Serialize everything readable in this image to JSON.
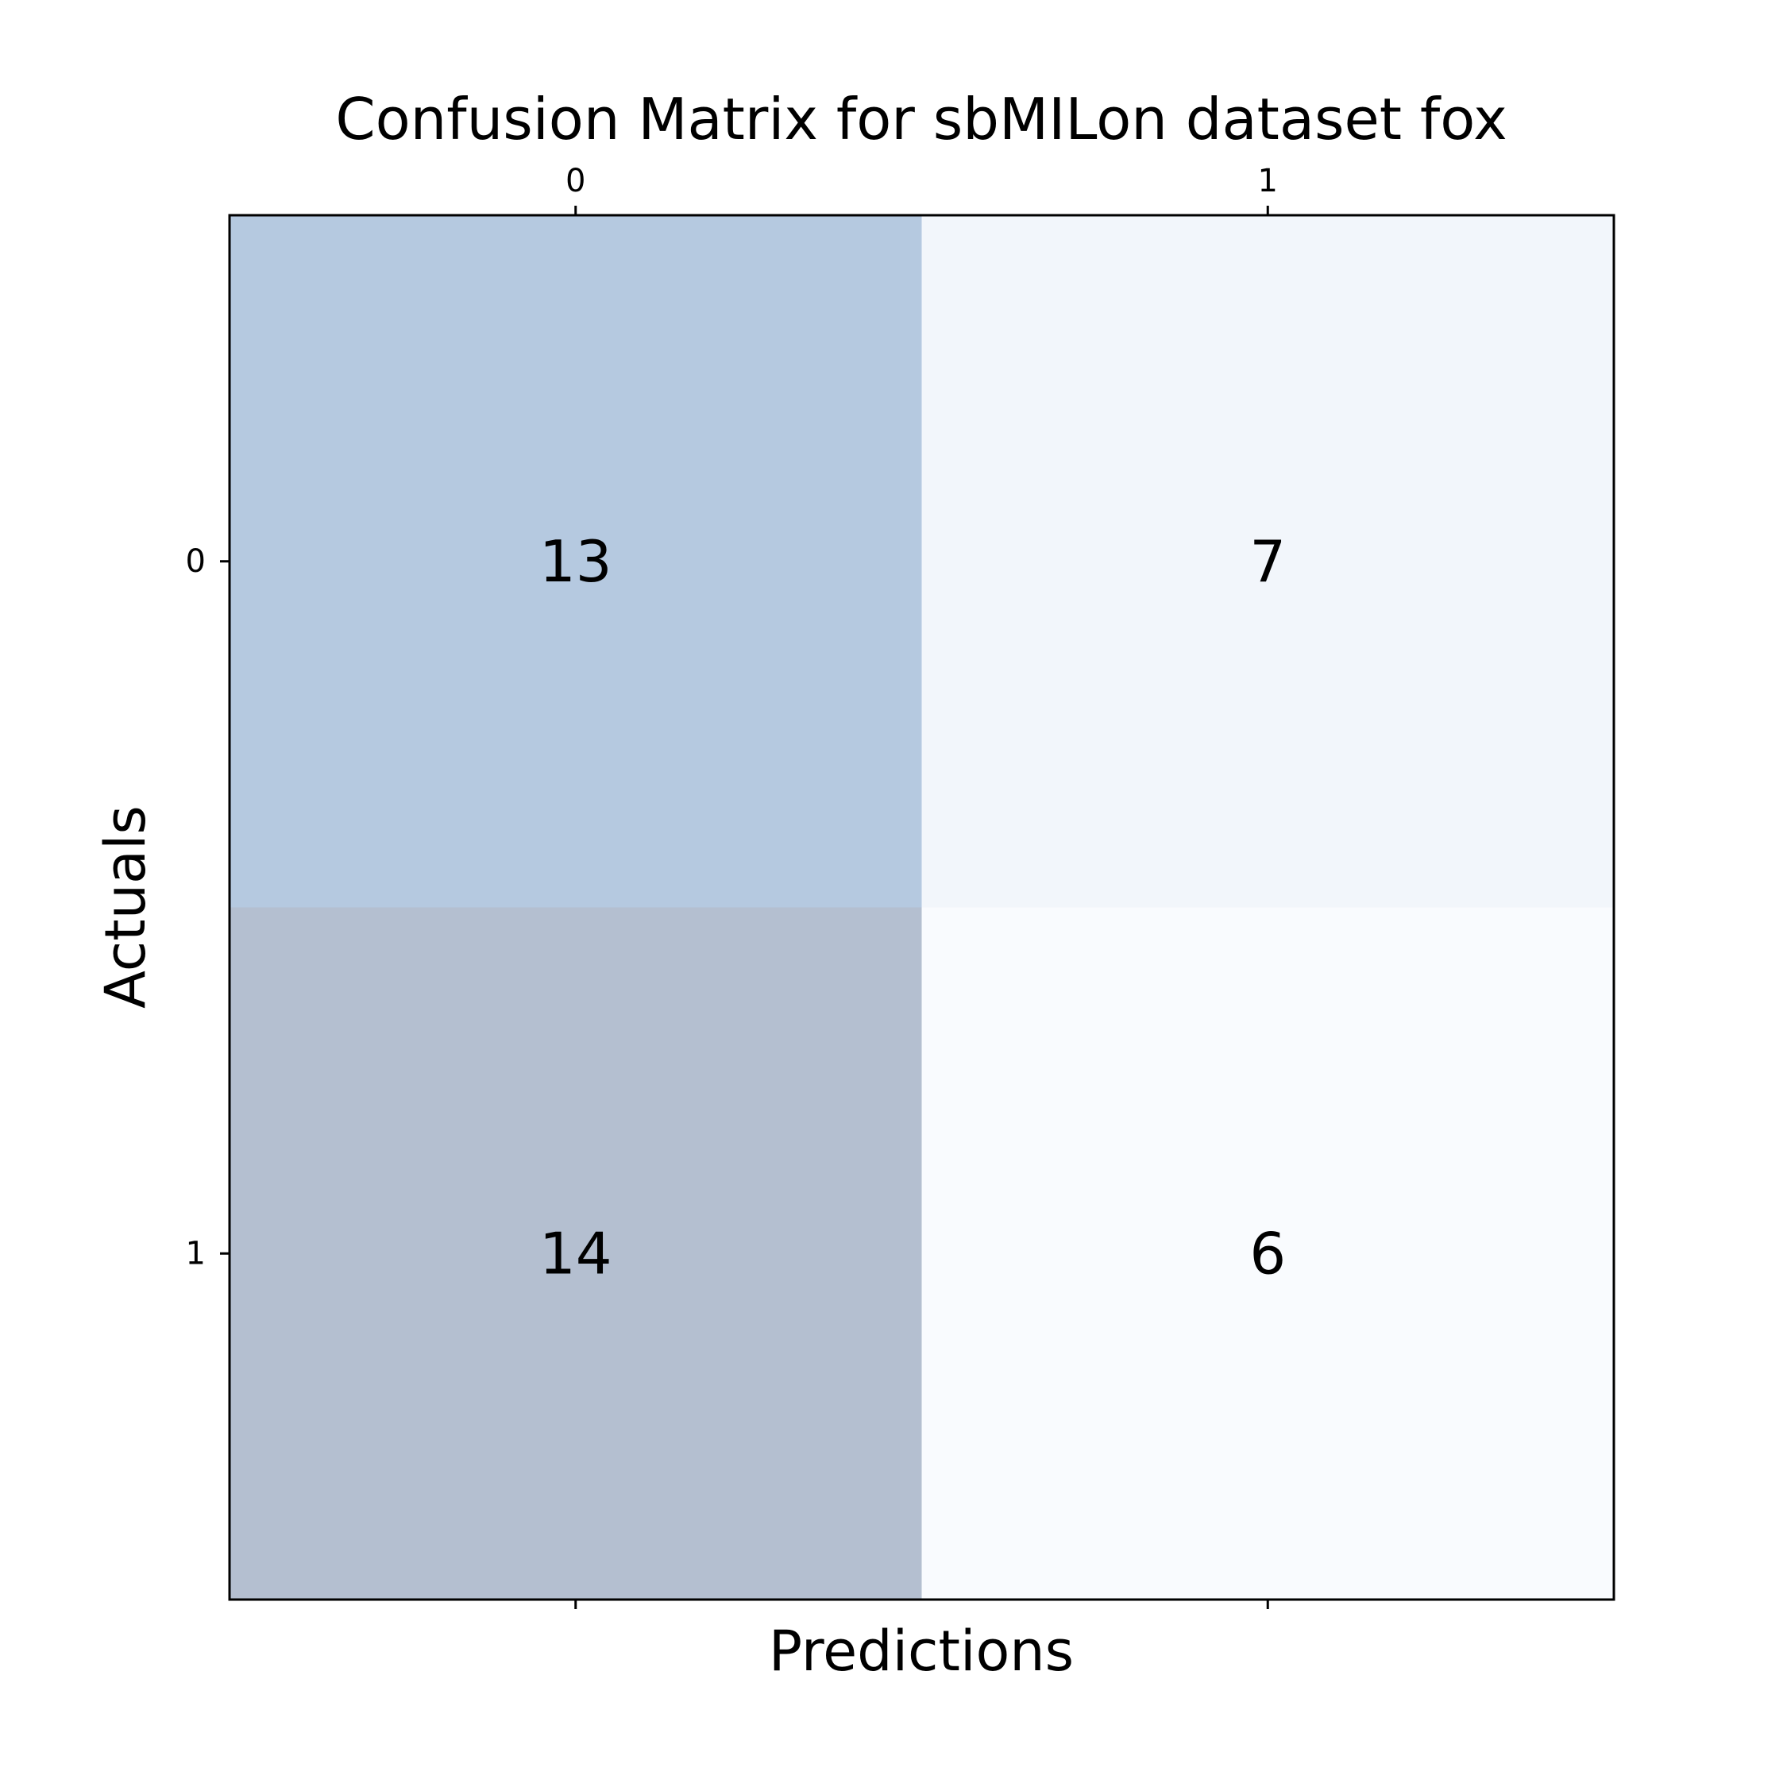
{
  "chart_data": {
    "type": "heatmap",
    "title": "Confusion Matrix for sbMILon dataset fox",
    "xlabel": "Predictions",
    "ylabel": "Actuals",
    "x_categories": [
      "0",
      "1"
    ],
    "y_categories": [
      "0",
      "1"
    ],
    "x_axis_position": "top",
    "matrix": [
      [
        13,
        7
      ],
      [
        14,
        6
      ]
    ],
    "cell_colors": [
      [
        "#b5c9e0",
        "#f2f6fb"
      ],
      [
        "#b4bfd0",
        "#f9fbfe"
      ]
    ],
    "grid": false,
    "legend": "none"
  }
}
